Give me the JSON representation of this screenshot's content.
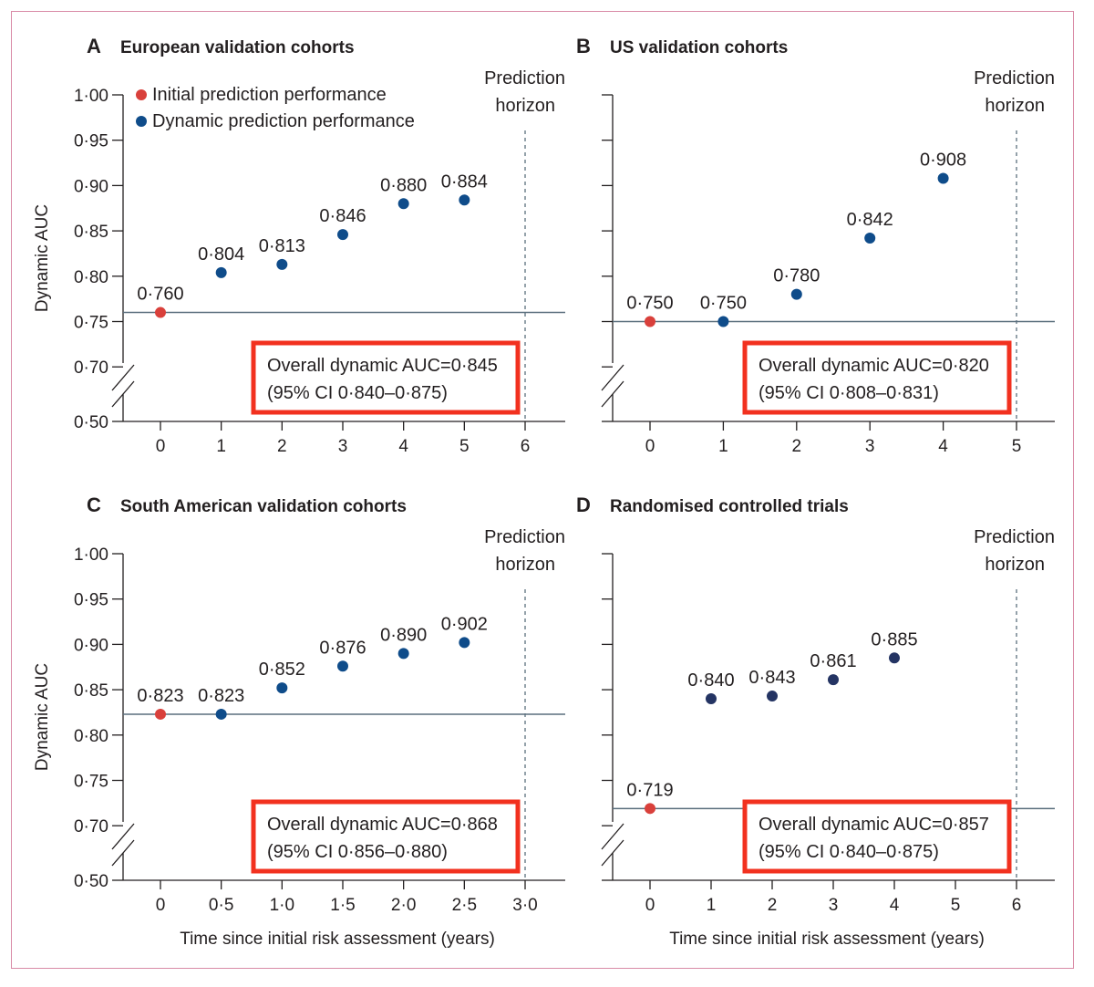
{
  "colors": {
    "initial": "#d9403b",
    "dynamic": "#0f4c8a",
    "dynamic_rct": "#243463",
    "baseline": "#5a6f7d",
    "highlight_box": "#f2311f",
    "axis": "#231f20",
    "frame": "#d98aa6"
  },
  "legend": {
    "initial_label": "Initial prediction performance",
    "dynamic_label": "Dynamic prediction performance"
  },
  "chart_data": [
    {
      "type": "scatter",
      "panel_letter": "A",
      "title": "European validation cohorts",
      "ylabel": "Dynamic AUC",
      "xlabel": "",
      "x_ticks": [
        "0",
        "1",
        "2",
        "3",
        "4",
        "5",
        "6"
      ],
      "x_values": [
        0,
        1,
        2,
        3,
        4,
        5,
        6
      ],
      "y_ticks": [
        "1·00",
        "0·95",
        "0·90",
        "0·85",
        "0·80",
        "0·75",
        "0·70",
        "0·50"
      ],
      "ylim": [
        0.5,
        1.0
      ],
      "y_axis_break": true,
      "prediction_horizon_x": 6,
      "prediction_horizon_label": [
        "Prediction",
        "horizon"
      ],
      "baseline": 0.76,
      "points": [
        {
          "x": 0,
          "y": 0.76,
          "label": "0·760",
          "kind": "initial"
        },
        {
          "x": 1,
          "y": 0.804,
          "label": "0·804",
          "kind": "dynamic"
        },
        {
          "x": 2,
          "y": 0.813,
          "label": "0·813",
          "kind": "dynamic"
        },
        {
          "x": 3,
          "y": 0.846,
          "label": "0·846",
          "kind": "dynamic"
        },
        {
          "x": 4,
          "y": 0.88,
          "label": "0·880",
          "kind": "dynamic"
        },
        {
          "x": 5,
          "y": 0.884,
          "label": "0·884",
          "kind": "dynamic"
        }
      ],
      "summary": [
        "Overall dynamic AUC=0·845",
        "(95% CI 0·840–0·875)"
      ]
    },
    {
      "type": "scatter",
      "panel_letter": "B",
      "title": "US validation cohorts",
      "ylabel": "",
      "xlabel": "",
      "x_ticks": [
        "0",
        "1",
        "2",
        "3",
        "4",
        "5"
      ],
      "x_values": [
        0,
        1,
        2,
        3,
        4,
        5
      ],
      "y_ticks": [
        "",
        "",
        "",
        "",
        "",
        "",
        "",
        ""
      ],
      "ylim": [
        0.5,
        1.0
      ],
      "y_axis_break": true,
      "prediction_horizon_x": 5,
      "prediction_horizon_label": [
        "Prediction",
        "horizon"
      ],
      "baseline": 0.75,
      "points": [
        {
          "x": 0,
          "y": 0.75,
          "label": "0·750",
          "kind": "initial"
        },
        {
          "x": 1,
          "y": 0.75,
          "label": "0·750",
          "kind": "dynamic"
        },
        {
          "x": 2,
          "y": 0.78,
          "label": "0·780",
          "kind": "dynamic"
        },
        {
          "x": 3,
          "y": 0.842,
          "label": "0·842",
          "kind": "dynamic"
        },
        {
          "x": 4,
          "y": 0.908,
          "label": "0·908",
          "kind": "dynamic"
        }
      ],
      "summary": [
        "Overall dynamic AUC=0·820",
        "(95% CI 0·808–0·831)"
      ]
    },
    {
      "type": "scatter",
      "panel_letter": "C",
      "title": "South American validation cohorts",
      "ylabel": "Dynamic AUC",
      "xlabel": "Time since initial risk assessment (years)",
      "x_ticks": [
        "0",
        "0·5",
        "1·0",
        "1·5",
        "2·0",
        "2·5",
        "3·0"
      ],
      "x_values": [
        0,
        0.5,
        1.0,
        1.5,
        2.0,
        2.5,
        3.0
      ],
      "y_ticks": [
        "1·00",
        "0·95",
        "0·90",
        "0·85",
        "0·80",
        "0·75",
        "0·70",
        "0·50"
      ],
      "ylim": [
        0.5,
        1.0
      ],
      "y_axis_break": true,
      "prediction_horizon_x": 3.0,
      "prediction_horizon_label": [
        "Prediction",
        "horizon"
      ],
      "baseline": 0.823,
      "points": [
        {
          "x": 0,
          "y": 0.823,
          "label": "0·823",
          "kind": "initial"
        },
        {
          "x": 0.5,
          "y": 0.823,
          "label": "0·823",
          "kind": "dynamic"
        },
        {
          "x": 1.0,
          "y": 0.852,
          "label": "0·852",
          "kind": "dynamic"
        },
        {
          "x": 1.5,
          "y": 0.876,
          "label": "0·876",
          "kind": "dynamic"
        },
        {
          "x": 2.0,
          "y": 0.89,
          "label": "0·890",
          "kind": "dynamic"
        },
        {
          "x": 2.5,
          "y": 0.902,
          "label": "0·902",
          "kind": "dynamic"
        }
      ],
      "summary": [
        "Overall dynamic AUC=0·868",
        "(95% CI 0·856–0·880)"
      ]
    },
    {
      "type": "scatter",
      "panel_letter": "D",
      "title": "Randomised controlled trials",
      "ylabel": "",
      "xlabel": "Time since initial risk assessment (years)",
      "x_ticks": [
        "0",
        "1",
        "2",
        "3",
        "4",
        "5",
        "6"
      ],
      "x_values": [
        0,
        1,
        2,
        3,
        4,
        5,
        6
      ],
      "y_ticks": [
        "",
        "",
        "",
        "",
        "",
        "",
        "",
        ""
      ],
      "ylim": [
        0.5,
        1.0
      ],
      "y_axis_break": true,
      "prediction_horizon_x": 6,
      "prediction_horizon_label": [
        "Prediction",
        "horizon"
      ],
      "baseline": 0.719,
      "points": [
        {
          "x": 0,
          "y": 0.719,
          "label": "0·719",
          "kind": "initial"
        },
        {
          "x": 1,
          "y": 0.84,
          "label": "0·840",
          "kind": "dynamic_rct"
        },
        {
          "x": 2,
          "y": 0.843,
          "label": "0·843",
          "kind": "dynamic_rct"
        },
        {
          "x": 3,
          "y": 0.861,
          "label": "0·861",
          "kind": "dynamic_rct"
        },
        {
          "x": 4,
          "y": 0.885,
          "label": "0·885",
          "kind": "dynamic_rct"
        }
      ],
      "summary": [
        "Overall dynamic AUC=0·857",
        "(95% CI 0·840–0·875)"
      ]
    }
  ]
}
